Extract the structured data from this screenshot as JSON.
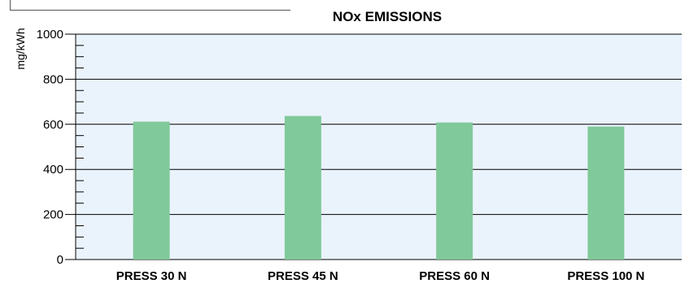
{
  "chart_data": {
    "type": "bar",
    "title": "NOx EMISSIONS",
    "xlabel": "",
    "ylabel": "mg/kWh",
    "categories": [
      "PRESS 30 N",
      "PRESS 45 N",
      "PRESS 60 N",
      "PRESS 100 N"
    ],
    "values": [
      612,
      637,
      608,
      590
    ],
    "ylim": [
      0,
      1000
    ],
    "yticks": [
      "0",
      "200",
      "400",
      "600",
      "800",
      "1000"
    ],
    "grid": true,
    "legend": "none",
    "colors": {
      "bar": "#80c99a",
      "plot_background": "#eaf3fc",
      "gridline": "#000000"
    }
  }
}
